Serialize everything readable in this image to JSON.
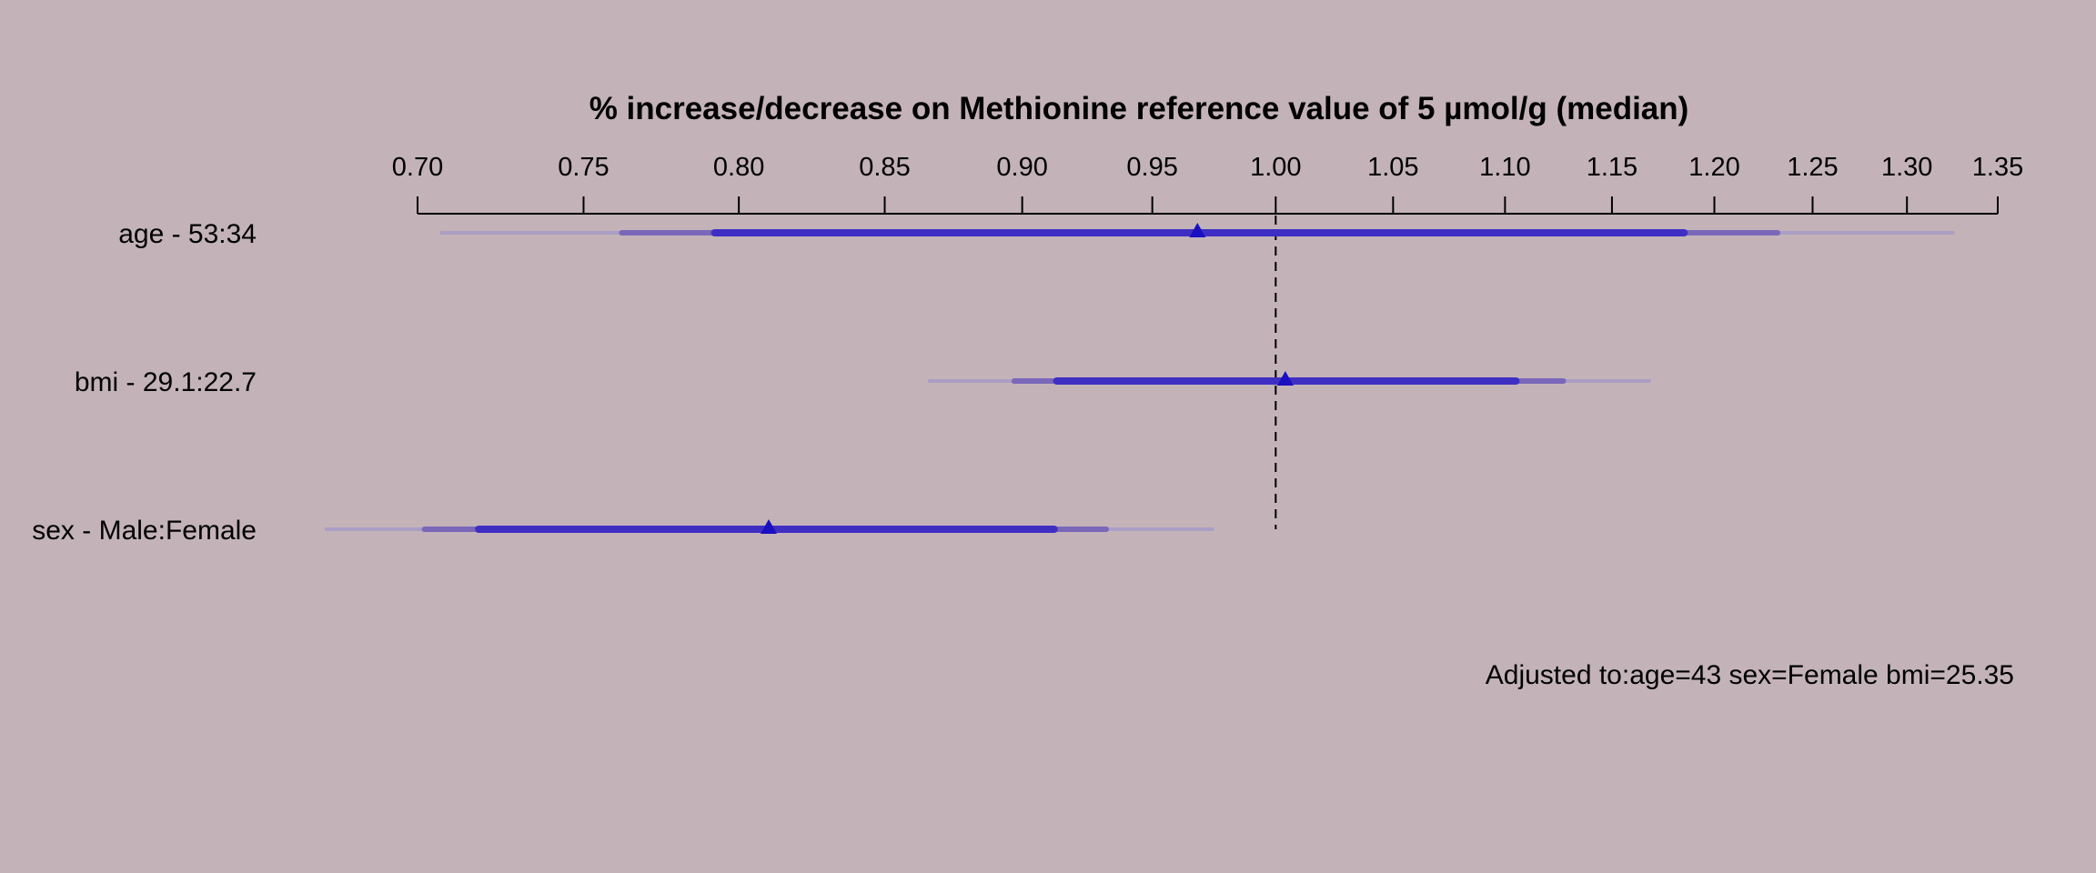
{
  "chart_data": {
    "type": "forest",
    "title": "% increase/decrease on Methionine reference value of 5 µmol/g (median)",
    "xscale": "log",
    "xlim": [
      0.7,
      1.35
    ],
    "ticks": [
      "0.70",
      "0.75",
      "0.80",
      "0.85",
      "0.90",
      "0.95",
      "1.00",
      "1.05",
      "1.10",
      "1.15",
      "1.20",
      "1.25",
      "1.30",
      "1.35"
    ],
    "reference_line": 1.0,
    "interval_levels": [
      "0.99",
      "0.95",
      "0.90"
    ],
    "colors": {
      "background": "#c3b3b9",
      "ci_outer": "#ab9dc3",
      "ci_mid": "#7b67b9",
      "ci_inner": "#3f2ec3",
      "point": "#1a0fc0"
    },
    "rows": [
      {
        "label": "age - 53:34",
        "estimate": 0.968,
        "ci90": [
          0.792,
          1.185
        ],
        "ci95": [
          0.762,
          1.232
        ],
        "ci99": [
          0.707,
          1.325
        ]
      },
      {
        "label": "bmi - 29.1:22.7",
        "estimate": 1.004,
        "ci90": [
          0.913,
          1.105
        ],
        "ci95": [
          0.897,
          1.127
        ],
        "ci99": [
          0.866,
          1.168
        ]
      },
      {
        "label": "sex - Male:Female",
        "estimate": 0.81,
        "ci90": [
          0.718,
          0.912
        ],
        "ci95": [
          0.702,
          0.932
        ],
        "ci99": [
          0.674,
          0.974
        ]
      }
    ],
    "annotation": "Adjusted to:age=43 sex=Female bmi=25.35"
  }
}
